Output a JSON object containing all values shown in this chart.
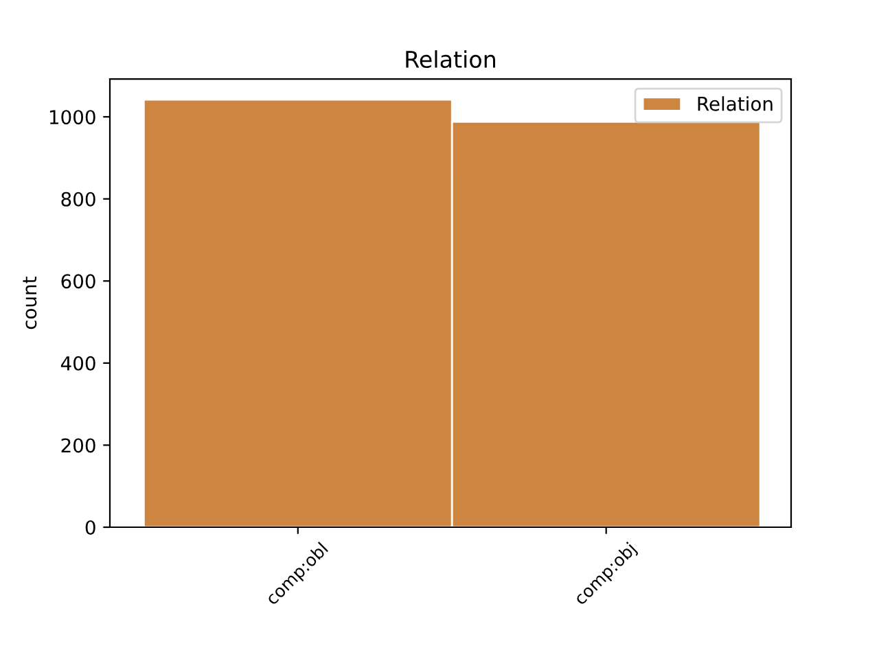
{
  "chart_data": {
    "type": "bar",
    "title": "Relation",
    "ylabel": "count",
    "categories": [
      "comp:obl",
      "comp:obj"
    ],
    "series": [
      {
        "name": "Relation",
        "color": "#cd853f",
        "values": [
          1042,
          988
        ]
      }
    ],
    "ylim": [
      0,
      1092
    ],
    "yticks": [
      0,
      200,
      400,
      600,
      800,
      1000
    ],
    "legend": "top right",
    "grid": false
  }
}
